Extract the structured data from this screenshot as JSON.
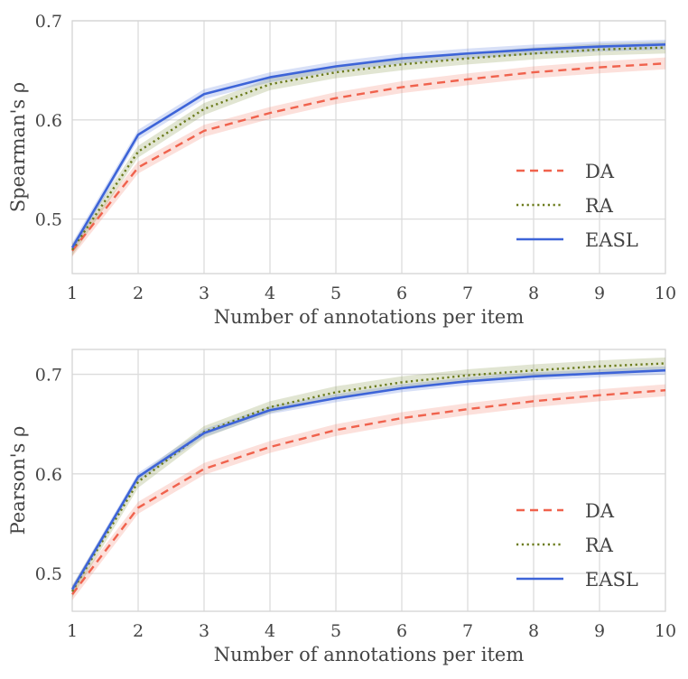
{
  "chart_data": [
    {
      "type": "line",
      "xlabel": "Number of annotations per item",
      "ylabel": "Spearman's ρ",
      "x": [
        1,
        2,
        3,
        4,
        5,
        6,
        7,
        8,
        9,
        10
      ],
      "xlim": [
        1,
        10
      ],
      "ylim": [
        0.445,
        0.7
      ],
      "yticks": [
        0.5,
        0.6,
        0.7
      ],
      "yticklabels": [
        "0.5",
        "0.6",
        "0.7"
      ],
      "grid": true,
      "legend_position": "lower-right",
      "series": [
        {
          "name": "DA",
          "color": "#f0624d",
          "dash": "dashed",
          "values": [
            0.468,
            0.552,
            0.589,
            0.607,
            0.622,
            0.633,
            0.641,
            0.648,
            0.653,
            0.657
          ],
          "band": 0.006
        },
        {
          "name": "RA",
          "color": "#6b7b1c",
          "dash": "dotted",
          "values": [
            0.469,
            0.568,
            0.611,
            0.636,
            0.648,
            0.656,
            0.662,
            0.667,
            0.671,
            0.673
          ],
          "band": 0.006
        },
        {
          "name": "EASL",
          "color": "#3d64d8",
          "dash": "solid",
          "values": [
            0.471,
            0.585,
            0.626,
            0.643,
            0.654,
            0.662,
            0.667,
            0.671,
            0.674,
            0.676
          ],
          "band": 0.005
        }
      ]
    },
    {
      "type": "line",
      "xlabel": "Number of annotations per item",
      "ylabel": "Pearson's ρ",
      "x": [
        1,
        2,
        3,
        4,
        5,
        6,
        7,
        8,
        9,
        10
      ],
      "xlim": [
        1,
        10
      ],
      "ylim": [
        0.462,
        0.725
      ],
      "yticks": [
        0.5,
        0.6,
        0.7
      ],
      "yticklabels": [
        "0.5",
        "0.6",
        "0.7"
      ],
      "grid": true,
      "legend_position": "lower-right",
      "series": [
        {
          "name": "DA",
          "color": "#f0624d",
          "dash": "dashed",
          "values": [
            0.479,
            0.566,
            0.605,
            0.627,
            0.644,
            0.656,
            0.665,
            0.673,
            0.679,
            0.684
          ],
          "band": 0.006
        },
        {
          "name": "RA",
          "color": "#6b7b1c",
          "dash": "dotted",
          "values": [
            0.482,
            0.592,
            0.642,
            0.667,
            0.682,
            0.692,
            0.699,
            0.704,
            0.708,
            0.711
          ],
          "band": 0.006
        },
        {
          "name": "EASL",
          "color": "#3d64d8",
          "dash": "solid",
          "values": [
            0.484,
            0.597,
            0.641,
            0.664,
            0.676,
            0.686,
            0.693,
            0.698,
            0.701,
            0.704
          ],
          "band": 0.004
        }
      ]
    }
  ]
}
